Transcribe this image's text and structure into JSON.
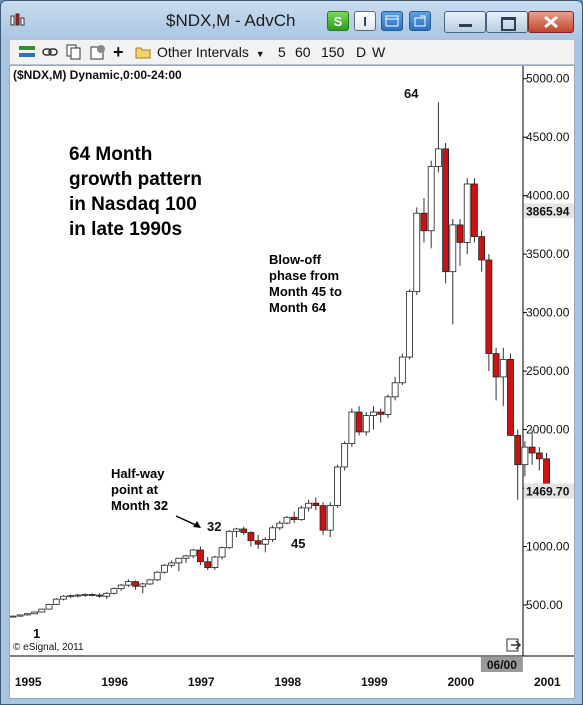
{
  "window": {
    "title": "$NDX,M - AdvCh",
    "buttons": [
      "S",
      "I",
      "",
      ""
    ]
  },
  "toolbar": {
    "intervals_label": "Other Intervals",
    "intervals": [
      "5",
      "60",
      "150",
      "D",
      "W"
    ]
  },
  "chart_header": "($NDX,M) Dynamic,0:00-24:00",
  "watermark": "© eSignal, 2011",
  "annotations": {
    "main": "64 Month\ngrowth pattern\nin Nasdaq 100\nin late 1990s",
    "blowoff": "Blow-off\nphase from\nMonth 45 to\nMonth 64",
    "halfway": "Half-way\npoint at\nMonth 32",
    "m1": "1",
    "m32": "32",
    "m45": "45",
    "m64": "64"
  },
  "colors": {
    "up": "#ffffff",
    "down": "#cc1111",
    "wick": "#333333"
  },
  "chart_data": {
    "type": "candlestick",
    "title": "",
    "ylim": [
      0,
      5200
    ],
    "y_ticks": [
      "500.00",
      "1000.00",
      "1500.00",
      "2000.00",
      "2500.00",
      "3000.00",
      "3500.00",
      "4000.00",
      "4500.00",
      "5000.00"
    ],
    "y_tick_values": [
      500,
      1000,
      1500,
      2000,
      2500,
      3000,
      3500,
      4000,
      4500,
      5000
    ],
    "x_labels": [
      "1995",
      "1996",
      "1997",
      "1998",
      "1999",
      "2000",
      "2001"
    ],
    "x_cursor_label": "06/00",
    "price_markers": [
      "3865.94",
      "1469.70"
    ],
    "price_marker_values": [
      3865.94,
      1469.7
    ],
    "start": "1994-12",
    "candles": [
      [
        400,
        410,
        395,
        405
      ],
      [
        405,
        420,
        400,
        415
      ],
      [
        415,
        430,
        410,
        425
      ],
      [
        425,
        445,
        420,
        440
      ],
      [
        440,
        470,
        435,
        465
      ],
      [
        465,
        510,
        460,
        505
      ],
      [
        505,
        560,
        500,
        550
      ],
      [
        550,
        585,
        540,
        575
      ],
      [
        575,
        590,
        560,
        580
      ],
      [
        580,
        595,
        565,
        585
      ],
      [
        585,
        600,
        570,
        590
      ],
      [
        590,
        600,
        575,
        585
      ],
      [
        585,
        600,
        560,
        575
      ],
      [
        575,
        610,
        550,
        600
      ],
      [
        600,
        650,
        590,
        640
      ],
      [
        640,
        680,
        620,
        670
      ],
      [
        670,
        720,
        655,
        700
      ],
      [
        700,
        710,
        630,
        660
      ],
      [
        660,
        690,
        600,
        680
      ],
      [
        680,
        720,
        670,
        715
      ],
      [
        715,
        790,
        705,
        780
      ],
      [
        780,
        850,
        770,
        840
      ],
      [
        840,
        880,
        820,
        860
      ],
      [
        860,
        900,
        790,
        900
      ],
      [
        900,
        930,
        860,
        920
      ],
      [
        920,
        980,
        900,
        970
      ],
      [
        970,
        1000,
        840,
        870
      ],
      [
        870,
        910,
        800,
        820
      ],
      [
        820,
        920,
        800,
        910
      ],
      [
        910,
        1000,
        890,
        990
      ],
      [
        990,
        1140,
        980,
        1130
      ],
      [
        1130,
        1160,
        1080,
        1150
      ],
      [
        1150,
        1170,
        1100,
        1120
      ],
      [
        1120,
        1130,
        1000,
        1050
      ],
      [
        1050,
        1100,
        980,
        1020
      ],
      [
        1020,
        1080,
        950,
        1060
      ],
      [
        1060,
        1180,
        1040,
        1160
      ],
      [
        1160,
        1220,
        1140,
        1200
      ],
      [
        1200,
        1260,
        1190,
        1250
      ],
      [
        1250,
        1300,
        1200,
        1230
      ],
      [
        1230,
        1350,
        1220,
        1330
      ],
      [
        1330,
        1400,
        1300,
        1370
      ],
      [
        1370,
        1420,
        1310,
        1350
      ],
      [
        1350,
        1380,
        1100,
        1140
      ],
      [
        1140,
        1380,
        1080,
        1350
      ],
      [
        1350,
        1700,
        1330,
        1680
      ],
      [
        1680,
        1900,
        1650,
        1880
      ],
      [
        1880,
        2180,
        1850,
        2150
      ],
      [
        2150,
        2200,
        1950,
        1980
      ],
      [
        1980,
        2150,
        1950,
        2120
      ],
      [
        2120,
        2200,
        2000,
        2150
      ],
      [
        2150,
        2180,
        2060,
        2130
      ],
      [
        2130,
        2300,
        2100,
        2280
      ],
      [
        2280,
        2450,
        2250,
        2400
      ],
      [
        2400,
        2650,
        2380,
        2620
      ],
      [
        2620,
        3200,
        2600,
        3180
      ],
      [
        3180,
        3900,
        3150,
        3850
      ],
      [
        3850,
        3980,
        3600,
        3700
      ],
      [
        3700,
        4300,
        3550,
        4250
      ],
      [
        4250,
        4800,
        4200,
        4400
      ],
      [
        4400,
        4450,
        3250,
        3350
      ],
      [
        3350,
        3800,
        2900,
        3750
      ],
      [
        3750,
        3800,
        3400,
        3600
      ],
      [
        3600,
        4150,
        3500,
        4100
      ],
      [
        4100,
        4150,
        3600,
        3650
      ],
      [
        3650,
        3700,
        3350,
        3450
      ],
      [
        3450,
        3500,
        2500,
        2650
      ],
      [
        2650,
        2700,
        2250,
        2450
      ],
      [
        2450,
        2700,
        2200,
        2600
      ],
      [
        2600,
        2650,
        1950,
        1950
      ],
      [
        1950,
        2000,
        1400,
        1700
      ],
      [
        1700,
        1900,
        1600,
        1850
      ],
      [
        1850,
        2000,
        1700,
        1800
      ],
      [
        1800,
        1850,
        1650,
        1750
      ],
      [
        1750,
        1800,
        1450,
        1470
      ]
    ]
  }
}
